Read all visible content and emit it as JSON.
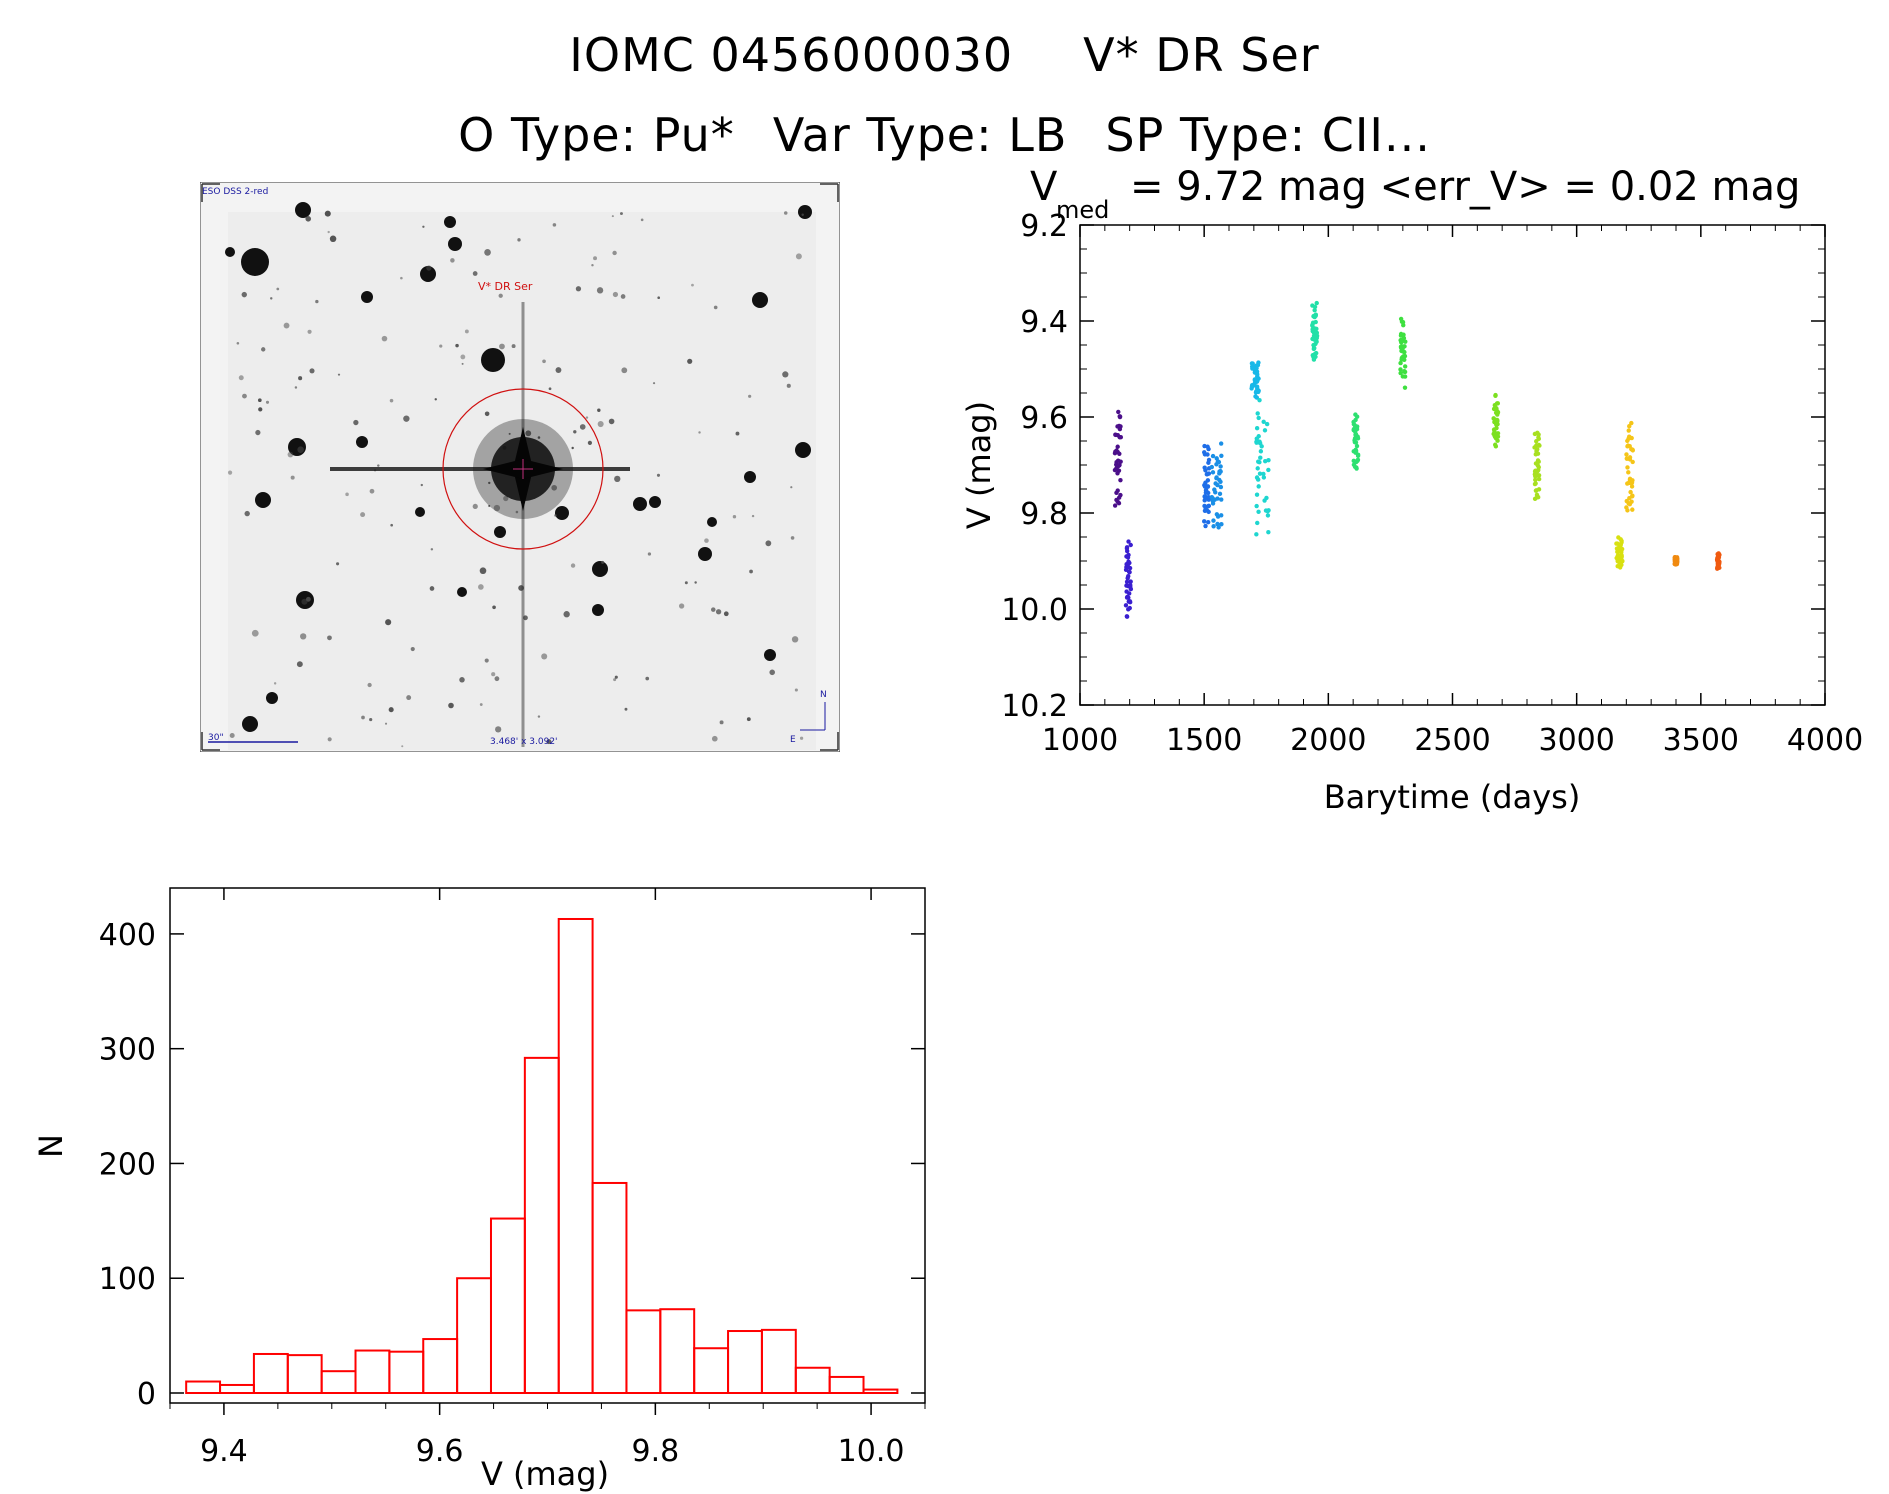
{
  "header": {
    "object_id": "IOMC 0456000030",
    "object_name": "V* DR Ser",
    "otype": "O Type: Pu*",
    "vartype": "Var Type: LB",
    "sptype": "SP Type: CII..."
  },
  "image_panel": {
    "survey_label": "ESO DSS 2-red",
    "target_label": "V* DR Ser",
    "scale_label": "30\"",
    "size_label": "3.468' x 3.092'",
    "north_label": "N",
    "east_label": "E",
    "colors": {
      "circle": "#d01010",
      "label": "#d01010",
      "overlay": "#1a1aa0"
    }
  },
  "chart_data": [
    {
      "type": "scatter",
      "title_prefix": "V",
      "title_subscript": "med",
      "title_rest": "= 9.72 mag <err_V> = 0.02 mag",
      "xlabel": "Barytime (days)",
      "ylabel": "V (mag)",
      "xlim": [
        1000,
        4000
      ],
      "ylim": [
        10.2,
        9.2
      ],
      "y_inverted": true,
      "xticks": [
        1000,
        1500,
        2000,
        2500,
        3000,
        3500,
        4000
      ],
      "xtick_labels": [
        "1000",
        "1500",
        "2000",
        "2500",
        "3000",
        "3500",
        "4000"
      ],
      "yticks": [
        9.2,
        9.4,
        9.6,
        9.8,
        10.0,
        10.2
      ],
      "ytick_labels": [
        "9.2",
        "9.4",
        "9.6",
        "9.8",
        "10.0",
        "10.2"
      ],
      "grid": false,
      "color_by_time": true,
      "clusters": [
        {
          "x": [
            1140,
            1165
          ],
          "y": [
            9.57,
            9.8
          ],
          "color": "#4b0f8a"
        },
        {
          "x": [
            1185,
            1205
          ],
          "y": [
            9.85,
            10.02
          ],
          "color": "#3a1fd0"
        },
        {
          "x": [
            1500,
            1520
          ],
          "y": [
            9.65,
            9.84
          ],
          "color": "#1f6ee8"
        },
        {
          "x": [
            1530,
            1570
          ],
          "y": [
            9.65,
            9.85
          ],
          "color": "#1a8fe6"
        },
        {
          "x": [
            1690,
            1720
          ],
          "y": [
            9.48,
            9.56
          ],
          "color": "#18b8e8"
        },
        {
          "x": [
            1710,
            1760
          ],
          "y": [
            9.55,
            9.87
          ],
          "color": "#1ed6d0"
        },
        {
          "x": [
            1935,
            1955
          ],
          "y": [
            9.36,
            9.5
          ],
          "color": "#22e0a8"
        },
        {
          "x": [
            2100,
            2120
          ],
          "y": [
            9.58,
            9.73
          ],
          "color": "#2de070"
        },
        {
          "x": [
            2290,
            2310
          ],
          "y": [
            9.39,
            9.54
          ],
          "color": "#3ee040"
        },
        {
          "x": [
            2665,
            2685
          ],
          "y": [
            9.55,
            9.67
          ],
          "color": "#7ce020"
        },
        {
          "x": [
            2830,
            2850
          ],
          "y": [
            9.62,
            9.78
          ],
          "color": "#a8e020"
        },
        {
          "x": [
            3160,
            3185
          ],
          "y": [
            9.85,
            9.92
          ],
          "color": "#d8e010"
        },
        {
          "x": [
            3200,
            3230
          ],
          "y": [
            9.6,
            9.82
          ],
          "color": "#f5c518"
        },
        {
          "x": [
            3395,
            3405
          ],
          "y": [
            9.89,
            9.91
          ],
          "color": "#f08a10"
        },
        {
          "x": [
            3565,
            3575
          ],
          "y": [
            9.88,
            9.92
          ],
          "color": "#f05a10"
        }
      ]
    },
    {
      "type": "bar",
      "subtype": "histogram",
      "xlabel": "V (mag)",
      "ylabel": "N",
      "xlim": [
        9.35,
        10.05
      ],
      "ylim": [
        0,
        430
      ],
      "xticks": [
        9.4,
        9.6,
        9.8,
        10.0
      ],
      "xtick_labels": [
        "9.4",
        "9.6",
        "9.8",
        "10.0"
      ],
      "yticks": [
        0,
        100,
        200,
        300,
        400
      ],
      "ytick_labels": [
        "0",
        "100",
        "200",
        "300",
        "400"
      ],
      "bin_start": 9.365,
      "bin_width": 0.0314,
      "values": [
        10,
        7,
        34,
        33,
        19,
        37,
        36,
        47,
        100,
        152,
        292,
        413,
        183,
        72,
        73,
        39,
        54,
        55,
        22,
        14,
        3
      ],
      "color": "#ff0000",
      "grid": false
    }
  ]
}
